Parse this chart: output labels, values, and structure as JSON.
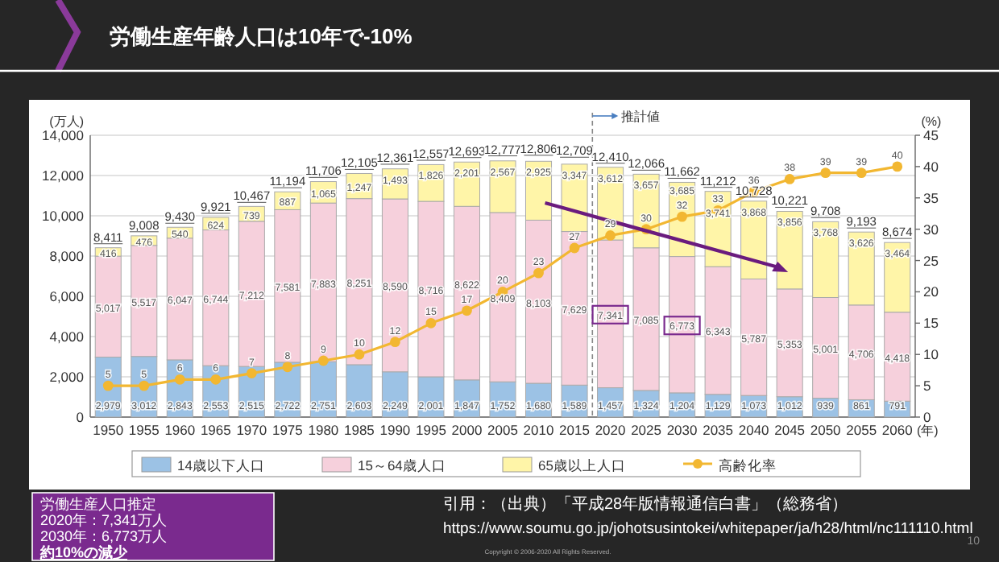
{
  "chart_data": {
    "type": "bar",
    "title": "労働生産年齢人口は10年で-10%",
    "categories": [
      "1950",
      "1955",
      "1960",
      "1965",
      "1970",
      "1975",
      "1980",
      "1985",
      "1990",
      "1995",
      "2000",
      "2005",
      "2010",
      "2015",
      "2020",
      "2025",
      "2030",
      "2035",
      "2040",
      "2045",
      "2050",
      "2055",
      "2060"
    ],
    "stacked": true,
    "series": [
      {
        "name": "14歳以下人口",
        "color": "#9cc2e5",
        "values": [
          2979,
          3012,
          2843,
          2553,
          2515,
          2722,
          2751,
          2603,
          2249,
          2001,
          1847,
          1752,
          1680,
          1589,
          1457,
          1324,
          1204,
          1129,
          1073,
          1012,
          939,
          861,
          791
        ],
        "value_labels": [
          "2,979",
          "3,012",
          "2,843",
          "2,553",
          "2,515",
          "2,722",
          "2,751",
          "2,603",
          "2,249",
          "2,001",
          "1,847",
          "1,752",
          "1,680",
          "1,589",
          "1,457",
          "1,324",
          "1,204",
          "1,129",
          "1,073",
          "1,012",
          "939",
          "861",
          "791"
        ]
      },
      {
        "name": "15～64歳人口",
        "color": "#f6d0dc",
        "values": [
          5017,
          5517,
          6047,
          6744,
          7212,
          7581,
          7883,
          8251,
          8590,
          8716,
          8622,
          8409,
          8103,
          7629,
          7341,
          7085,
          6773,
          6343,
          5787,
          5353,
          5001,
          4706,
          4418
        ],
        "value_labels": [
          "5,017",
          "5,517",
          "6,047",
          "6,744",
          "7,212",
          "7,581",
          "7,883",
          "8,251",
          "8,590",
          "8,716",
          "8,622",
          "8,409",
          "8,103",
          "7,629",
          "7,341",
          "7,085",
          "6,773",
          "6,343",
          "5,787",
          "5,353",
          "5,001",
          "4,706",
          "4,418"
        ]
      },
      {
        "name": "65歳以上人口",
        "color": "#fff5a8",
        "values": [
          416,
          476,
          540,
          624,
          739,
          887,
          1065,
          1247,
          1493,
          1826,
          2201,
          2567,
          2925,
          3347,
          3612,
          3657,
          3685,
          3741,
          3868,
          3856,
          3768,
          3626,
          3464
        ],
        "value_labels": [
          "416",
          "476",
          "540",
          "624",
          "739",
          "887",
          "1,065",
          "1,247",
          "1,493",
          "1,826",
          "2,201",
          "2,567",
          "2,925",
          "3,347",
          "3,612",
          "3,657",
          "3,685",
          "3,741",
          "3,868",
          "3,856",
          "3,768",
          "3,626",
          "3,464"
        ]
      },
      {
        "name": "高齢化率",
        "type": "line",
        "axis": "y2",
        "color": "#f2b731",
        "marker": "circle",
        "values": [
          5,
          5,
          6,
          6,
          7,
          8,
          9,
          10,
          12,
          15,
          17,
          20,
          23,
          27,
          29,
          30,
          32,
          33,
          36,
          38,
          39,
          39,
          40
        ],
        "value_labels": [
          "5",
          "5",
          "6",
          "6",
          "7",
          "8",
          "9",
          "10",
          "12",
          "15",
          "17",
          "20",
          "23",
          "27",
          "29",
          "30",
          "32",
          "33",
          "36",
          "38",
          "39",
          "39",
          "40"
        ]
      }
    ],
    "ylabel": "(万人)",
    "y2label": "(%)",
    "xlabel": "(年)",
    "ylim": [
      0,
      14000
    ],
    "yticks": [
      0,
      {
        "value": 2000,
        "label": "2,000"
      },
      {
        "value": 4000,
        "label": "4,000"
      },
      {
        "value": 6000,
        "label": "6,000"
      },
      {
        "value": 8000,
        "label": "8,000"
      },
      {
        "value": 10000,
        "label": "10,000"
      },
      {
        "value": 12000,
        "label": "12,000"
      },
      {
        "value": 14000,
        "label": "14,000"
      }
    ],
    "y2lim": [
      0,
      45
    ],
    "y2ticks": [
      0,
      5,
      10,
      15,
      20,
      25,
      30,
      35,
      40,
      45
    ],
    "grid": "y",
    "legend": "bottom",
    "ref_lines": [
      {
        "axis": "x",
        "value": "2020",
        "label": "推計値",
        "line_style": "dashed",
        "color": "#888888"
      }
    ],
    "annotations": [
      "労働生産人口推定",
      "2020年：7,341万人",
      "2030年：6,773万人",
      "約10%の減少",
      "引用：（出典）「平成28年版情報通信白書」（総務省）",
      "https://www.soumu.go.jp/johotsusintokei/whitepaper/ja/h28/html/nc111110.html",
      "Copyright © 2006-2020 All Rights Reserved.",
      "10",
      {
        "text": "8,411",
        "x": "1950",
        "y": 8411
      },
      {
        "text": "9,008",
        "x": "1955",
        "y": 9008
      },
      {
        "text": "9,430",
        "x": "1960",
        "y": 9430
      },
      {
        "text": "9,921",
        "x": "1965",
        "y": 9921
      },
      {
        "text": "10,467",
        "x": "1970",
        "y": 10467
      },
      {
        "text": "11,194",
        "x": "1975",
        "y": 11194
      },
      {
        "text": "11,706",
        "x": "1980",
        "y": 11706
      },
      {
        "text": "12,105",
        "x": "1985",
        "y": 12105
      },
      {
        "text": "12,361",
        "x": "1990",
        "y": 12361
      },
      {
        "text": "12,557",
        "x": "1995",
        "y": 12557
      },
      {
        "text": "12,693",
        "x": "2000",
        "y": 12693
      },
      {
        "text": "12,777",
        "x": "2005",
        "y": 12777
      },
      {
        "text": "12,806",
        "x": "2010",
        "y": 12806
      },
      {
        "text": "12,709",
        "x": "2015",
        "y": 12709
      },
      {
        "text": "12,410",
        "x": "2020",
        "y": 12410
      },
      {
        "text": "12,066",
        "x": "2025",
        "y": 12066
      },
      {
        "text": "11,662",
        "x": "2030",
        "y": 11662
      },
      {
        "text": "11,212",
        "x": "2035",
        "y": 11212
      },
      {
        "text": "10,728",
        "x": "2040",
        "y": 10728
      },
      {
        "text": "10,221",
        "x": "2045",
        "y": 10221
      },
      {
        "text": "9,708",
        "x": "2050",
        "y": 9708
      },
      {
        "text": "9,193",
        "x": "2055",
        "y": 9193
      },
      {
        "text": "8,674",
        "x": "2060",
        "y": 8674
      }
    ]
  }
}
